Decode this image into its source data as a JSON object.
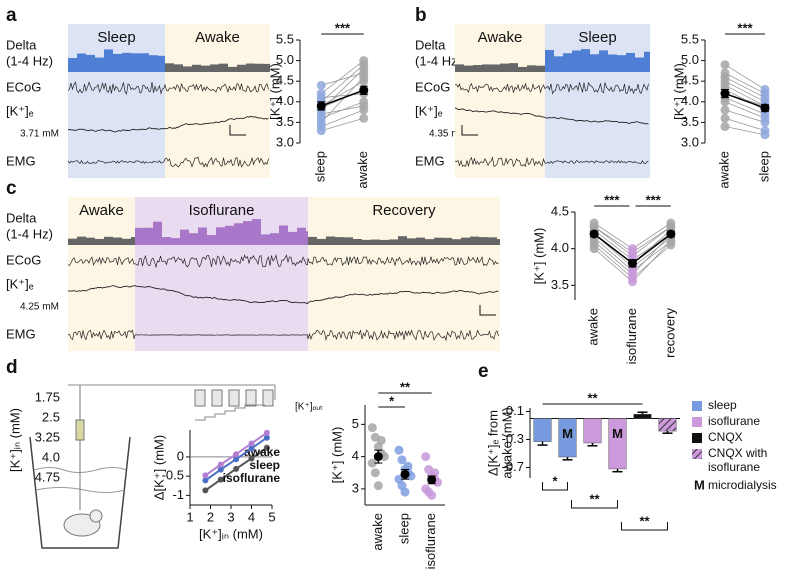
{
  "panels": {
    "a": {
      "label": "a",
      "states": [
        "Sleep",
        "Awake"
      ],
      "rows": [
        "Delta",
        "(1-4 Hz)",
        "ECoG",
        "[K⁺]ₑ",
        "EMG"
      ],
      "baseline": "3.71 mM"
    },
    "b": {
      "label": "b",
      "states": [
        "Awake",
        "Sleep"
      ],
      "rows": [
        "Delta",
        "(1-4 Hz)",
        "ECoG",
        "[K⁺]ₑ",
        "EMG"
      ],
      "baseline": "4.35 mM"
    },
    "c": {
      "label": "c",
      "states": [
        "Awake",
        "Isoflurane",
        "Recovery"
      ],
      "rows": [
        "Delta",
        "(1-4 Hz)",
        "ECoG",
        "[K⁺]ₑ",
        "EMG"
      ],
      "baseline": "4.25 mM"
    },
    "d": {
      "label": "d",
      "kin_label": "[K⁺]ᵢₙ (mM)",
      "kin_ticks": [
        "1.75",
        "2.5",
        "3.25",
        "4.0",
        "4.75"
      ],
      "kout_label": "[K⁺]ₒᵤₜ"
    },
    "e": {
      "label": "e"
    }
  },
  "chart_data": [
    {
      "type": "paired",
      "ylabel": "[K⁺] (mM)",
      "categories": [
        "sleep",
        "awake"
      ],
      "colors": [
        "#8ea7dc",
        "#a6a6a6"
      ],
      "ylim": [
        3.0,
        5.5
      ],
      "yticks": [
        {
          "value": 3,
          "label": "3.0"
        },
        3.5,
        {
          "value": 4,
          "label": "4.0"
        },
        4.5,
        {
          "value": 5,
          "label": "5.0"
        },
        5.5
      ],
      "values": [
        3.9,
        4.28
      ],
      "errors": [
        0.1,
        0.1
      ],
      "points": [
        [
          3.3,
          3.5,
          3.6,
          3.7,
          3.8,
          3.85,
          3.9,
          4.0,
          4.1,
          4.2,
          4.4,
          3.4
        ],
        [
          3.6,
          4.6,
          4.0,
          3.9,
          4.8,
          4.3,
          4.5,
          4.9,
          4.2,
          5.0,
          4.7,
          3.8
        ]
      ],
      "significance": [
        "***"
      ]
    },
    {
      "type": "paired",
      "ylabel": "[K⁺] (mM)",
      "categories": [
        "awake",
        "sleep"
      ],
      "colors": [
        "#a6a6a6",
        "#8ea7dc"
      ],
      "ylim": [
        3.0,
        5.5
      ],
      "yticks": [
        {
          "value": 3,
          "label": "3.0"
        },
        3.5,
        {
          "value": 4,
          "label": "4.0"
        },
        4.5,
        {
          "value": 5,
          "label": "5.0"
        },
        5.5
      ],
      "values": [
        4.2,
        3.85
      ],
      "errors": [
        0.1,
        0.08
      ],
      "points": [
        [
          4.9,
          4.6,
          4.4,
          4.3,
          4.2,
          4.1,
          4.0,
          3.8,
          3.6,
          3.4,
          4.5,
          4.7
        ],
        [
          4.3,
          4.1,
          3.9,
          3.8,
          3.9,
          3.7,
          3.6,
          3.5,
          3.3,
          3.2,
          4.0,
          4.2
        ]
      ],
      "significance": [
        "***"
      ]
    },
    {
      "type": "paired",
      "ylabel": "[K⁺] (mM)",
      "categories": [
        "awake",
        "isoflurane",
        "recovery"
      ],
      "colors": [
        "#a6a6a6",
        "#c899da",
        "#a6a6a6"
      ],
      "ylim": [
        3.3,
        4.5
      ],
      "yticks": [
        3.5,
        {
          "value": 4,
          "label": "4.0"
        },
        4.5
      ],
      "values": [
        4.2,
        3.8,
        4.2
      ],
      "errors": [
        0.04,
        0.05,
        0.04
      ],
      "points": [
        [
          4.35,
          4.3,
          4.25,
          4.2,
          4.2,
          4.15,
          4.1,
          4.05,
          4.3,
          4.0
        ],
        [
          4.0,
          3.9,
          3.85,
          3.8,
          3.75,
          3.7,
          3.65,
          3.6,
          3.95,
          3.55
        ],
        [
          4.35,
          4.3,
          4.2,
          4.25,
          4.15,
          4.1,
          4.2,
          4.05,
          4.3,
          4.1
        ]
      ],
      "significance": [
        "***",
        "***"
      ]
    },
    {
      "type": "line",
      "xlabel": "[K⁺]ᵢₙ (mM)",
      "ylabel": "Δ[K⁺] (mM)",
      "x": [
        1.75,
        2.5,
        3.25,
        4,
        4.75
      ],
      "xlim": [
        1,
        5
      ],
      "xticks": [
        1,
        2,
        3,
        4,
        5
      ],
      "ylim": [
        -1.25,
        0.7
      ],
      "yticks": [
        0,
        -0.5,
        -1
      ],
      "series": [
        {
          "name": "awake",
          "color": "#555555",
          "values": [
            -0.87,
            -0.59,
            -0.31,
            -0.04,
            0.24
          ]
        },
        {
          "name": "sleep",
          "color": "#4a6fc4",
          "values": [
            -0.61,
            -0.33,
            -0.06,
            0.22,
            0.5
          ]
        },
        {
          "name": "isoflurane",
          "color": "#b27fd0",
          "values": [
            -0.48,
            -0.2,
            0.07,
            0.35,
            0.63
          ]
        }
      ]
    },
    {
      "type": "dot",
      "ylabel": "[K⁺] (mM)",
      "categories": [
        "awake",
        "sleep",
        "isoflurane"
      ],
      "colors": [
        "#a6a6a6",
        "#7f9ee0",
        "#c899da"
      ],
      "ylim": [
        2.5,
        5.6
      ],
      "yticks": [
        3,
        4,
        5
      ],
      "values": [
        4.0,
        3.45,
        3.28
      ],
      "errors": [
        0.2,
        0.15,
        0.12
      ],
      "points": [
        [
          4.9,
          4.6,
          4.3,
          4.1,
          4.0,
          3.8,
          3.5,
          3.1,
          4.5
        ],
        [
          4.2,
          3.9,
          3.6,
          3.5,
          3.4,
          3.3,
          3.1,
          2.9,
          3.7
        ],
        [
          4.0,
          3.6,
          3.4,
          3.3,
          3.2,
          3.0,
          2.9,
          2.8,
          3.5
        ]
      ],
      "significance": [
        "*",
        "**"
      ]
    },
    {
      "type": "bar",
      "ylabel": [
        "Δ[K⁺]ₑ from",
        "awake (mM)"
      ],
      "values": [
        -0.33,
        -0.55,
        -0.35,
        -0.72,
        0.06,
        -0.18
      ],
      "errors": [
        0.05,
        0.04,
        0.04,
        0.04,
        0.03,
        0.03
      ],
      "colors": [
        "#7799dd",
        "#7799dd",
        "#cc99dd",
        "#cc99dd",
        "#111111",
        "hatch"
      ],
      "markers": [
        null,
        "M",
        null,
        "M",
        null,
        null
      ],
      "ylim": [
        -0.85,
        0.15
      ],
      "yticks": [
        0.1,
        -0.3,
        -0.7
      ],
      "significance": [
        "**",
        "*",
        "**",
        "**"
      ],
      "legend": [
        {
          "name": "sleep",
          "color": "#7799dd"
        },
        {
          "name": "isoflurane",
          "color": "#cc99dd"
        },
        {
          "name": "CNQX",
          "color": "#111111"
        },
        {
          "name": [
            "CNQX with",
            "isoflurane"
          ],
          "color": "hatch"
        },
        {
          "symbol": "M",
          "name": "microdialysis"
        }
      ]
    }
  ]
}
